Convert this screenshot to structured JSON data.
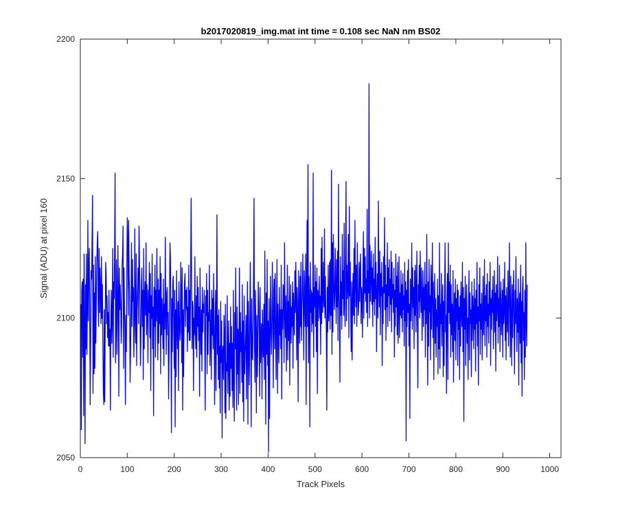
{
  "figure": {
    "background_color": "#ffffff"
  },
  "chart_data": {
    "type": "line",
    "title": "b2017020819_img.mat int time = 0.108 sec  NaN nm BS02",
    "xlabel": "Track Pixels",
    "ylabel": "Signal (ADU) at pixel 160",
    "xlim": [
      0,
      1024
    ],
    "ylim": [
      2050,
      2200
    ],
    "xticks": [
      0,
      100,
      200,
      300,
      400,
      500,
      600,
      700,
      800,
      900,
      1000
    ],
    "yticks": [
      2050,
      2100,
      2150,
      2200
    ],
    "grid": false,
    "legend": "none",
    "series": [
      {
        "color": "#0000ff",
        "note_x_start": 1,
        "x_step": 1,
        "y": [
          2105,
          2060,
          2110,
          2113,
          2086,
          2114,
          2065,
          2123,
          2097,
          2055,
          2112,
          2089,
          2123,
          2087,
          2103,
          2135,
          2099,
          2119,
          2125,
          2100,
          2069,
          2094,
          2117,
          2114,
          2129,
          2144,
          2073,
          2119,
          2080,
          2109,
          2082,
          2122,
          2091,
          2104,
          2119,
          2127,
          2131,
          2106,
          2097,
          2125,
          2102,
          2118,
          2110,
          2098,
          2122,
          2100,
          2112,
          2091,
          2074,
          2069,
          2103,
          2070,
          2097,
          2120,
          2115,
          2098,
          2108,
          2093,
          2102,
          2090,
          2110,
          2090,
          2096,
          2067,
          2101,
          2110,
          2091,
          2100,
          2125,
          2086,
          2113,
          2107,
          2124,
          2152,
          2084,
          2100,
          2121,
          2087,
          2099,
          2126,
          2108,
          2072,
          2118,
          2103,
          2112,
          2105,
          2091,
          2097,
          2119,
          2123,
          2133,
          2082,
          2118,
          2104,
          2095,
          2069,
          2101,
          2088,
          2117,
          2136,
          2129,
          2101,
          2135,
          2115,
          2108,
          2077,
          2088,
          2103,
          2127,
          2097,
          2121,
          2106,
          2111,
          2086,
          2095,
          2132,
          2100,
          2091,
          2123,
          2083,
          2103,
          2110,
          2118,
          2098,
          2133,
          2121,
          2105,
          2083,
          2091,
          2112,
          2118,
          2097,
          2110,
          2078,
          2125,
          2089,
          2107,
          2113,
          2101,
          2127,
          2094,
          2112,
          2105,
          2084,
          2110,
          2102,
          2120,
          2093,
          2116,
          2074,
          2108,
          2100,
          2123,
          2089,
          2104,
          2065,
          2111,
          2097,
          2119,
          2086,
          2110,
          2099,
          2125,
          2103,
          2085,
          2114,
          2091,
          2110,
          2098,
          2122,
          2080,
          2116,
          2094,
          2107,
          2100,
          2089,
          2114,
          2083,
          2105,
          2096,
          2129,
          2102,
          2087,
          2109,
          2111,
          2094,
          2102,
          2071,
          2086,
          2108,
          2127,
          2121,
          2097,
          2059,
          2107,
          2088,
          2113,
          2115,
          2096,
          2082,
          2110,
          2061,
          2103,
          2079,
          2117,
          2096,
          2089,
          2106,
          2074,
          2113,
          2101,
          2092,
          2095,
          2120,
          2109,
          2084,
          2118,
          2067,
          2103,
          2079,
          2100,
          2113,
          2116,
          2097,
          2110,
          2103,
          2111,
          2088,
          2104,
          2095,
          2119,
          2092,
          2110,
          2092,
          2116,
          2143,
          2116,
          2089,
          2106,
          2104,
          2074,
          2100,
          2094,
          2122,
          2095,
          2089,
          2108,
          2086,
          2115,
          2097,
          2111,
          2092,
          2104,
          2072,
          2118,
          2099,
          2087,
          2103,
          2081,
          2111,
          2095,
          2105,
          2102,
          2110,
          2093,
          2067,
          2108,
          2101,
          2116,
          2080,
          2110,
          2087,
          2102,
          2099,
          2119,
          2083,
          2094,
          2103,
          2078,
          2110,
          2094,
          2107,
          2089,
          2116,
          2098,
          2069,
          2092,
          2110,
          2074,
          2099,
          2137,
          2087,
          2101,
          2078,
          2103,
          2075,
          2090,
          2066,
          2106,
          2084,
          2099,
          2057,
          2088,
          2090,
          2078,
          2101,
          2094,
          2066,
          2105,
          2064,
          2084,
          2081,
          2108,
          2073,
          2087,
          2099,
          2067,
          2091,
          2072,
          2104,
          2082,
          2097,
          2074,
          2091,
          2068,
          2110,
          2081,
          2063,
          2102,
          2089,
          2118,
          2086,
          2067,
          2104,
          2080,
          2096,
          2069,
          2093,
          2118,
          2073,
          2102,
          2088,
          2095,
          2077,
          2112,
          2070,
          2099,
          2063,
          2108,
          2080,
          2087,
          2092,
          2101,
          2071,
          2096,
          2113,
          2062,
          2106,
          2089,
          2076,
          2100,
          2120,
          2092,
          2061,
          2107,
          2087,
          2085,
          2097,
          2115,
          2143,
          2091,
          2077,
          2110,
          2095,
          2066,
          2101,
          2079,
          2089,
          2113,
          2107,
          2095,
          2072,
          2111,
          2084,
          2092,
          2098,
          2071,
          2103,
          2091,
          2086,
          2105,
          2078,
          2124,
          2094,
          2062,
          2109,
          2087,
          2121,
          2083,
          2099,
          2052,
          2107,
          2064,
          2092,
          2115,
          2095,
          2087,
          2101,
          2120,
          2096,
          2075,
          2110,
          2114,
          2089,
          2116,
          2096,
          2078,
          2104,
          2121,
          2073,
          2105,
          2095,
          2084,
          2111,
          2094,
          2103,
          2089,
          2119,
          2071,
          2103,
          2096,
          2112,
          2110,
          2084,
          2127,
          2102,
          2093,
          2108,
          2081,
          2099,
          2119,
          2085,
          2106,
          2092,
          2115,
          2076,
          2099,
          2112,
          2091,
          2104,
          2097,
          2113,
          2082,
          2109,
          2101,
          2094,
          2117,
          2102,
          2120,
          2106,
          2085,
          2111,
          2100,
          2070,
          2117,
          2103,
          2091,
          2115,
          2097,
          2120,
          2092,
          2104,
          2110,
          2123,
          2101,
          2085,
          2117,
          2108,
          2097,
          2123,
          2069,
          2110,
          2135,
          2097,
          2155,
          2084,
          2115,
          2106,
          2061,
          2120,
          2102,
          2110,
          2095,
          2109,
          2098,
          2152,
          2086,
          2111,
          2104,
          2119,
          2097,
          2113,
          2088,
          2118,
          2073,
          2110,
          2099,
          2107,
          2115,
          2100,
          2108,
          2087,
          2125,
          2098,
          2129,
          2102,
          2107,
          2120,
          2104,
          2132,
          2100,
          2115,
          2102,
          2096,
          2067,
          2111,
          2095,
          2119,
          2099,
          2103,
          2120,
          2096,
          2121,
          2101,
          2153,
          2087,
          2127,
          2095,
          2130,
          2114,
          2103,
          2108,
          2125,
          2111,
          2098,
          2121,
          2104,
          2124,
          2092,
          2148,
          2109,
          2103,
          2077,
          2122,
          2101,
          2113,
          2096,
          2130,
          2107,
          2117,
          2101,
          2134,
          2106,
          2097,
          2123,
          2149,
          2099,
          2119,
          2107,
          2112,
          2130,
          2093,
          2140,
          2108,
          2120,
          2101,
          2088,
          2113,
          2085,
          2107,
          2116,
          2101,
          2125,
          2098,
          2135,
          2113,
          2104,
          2119,
          2097,
          2127,
          2112,
          2101,
          2104,
          2120,
          2106,
          2117,
          2123,
          2098,
          2111,
          2108,
          2093,
          2116,
          2131,
          2100,
          2125,
          2109,
          2122,
          2106,
          2114,
          2102,
          2139,
          2097,
          2117,
          2109,
          2184,
          2100,
          2126,
          2106,
          2115,
          2124,
          2105,
          2118,
          2097,
          2123,
          2106,
          2114,
          2101,
          2129,
          2107,
          2120,
          2088,
          2109,
          2116,
          2100,
          2142,
          2112,
          2104,
          2124,
          2094,
          2116,
          2108,
          2120,
          2083,
          2111,
          2098,
          2122,
          2109,
          2136,
          2103,
          2119,
          2092,
          2112,
          2104,
          2127,
          2097,
          2118,
          2108,
          2121,
          2099,
          2114,
          2105,
          2124,
          2095,
          2120,
          2107,
          2112,
          2102,
          2118,
          2086,
          2110,
          2097,
          2123,
          2104,
          2115,
          2094,
          2120,
          2091,
          2106,
          2122,
          2093,
          2109,
          2101,
          2117,
          2100,
          2112,
          2095,
          2116,
          2103,
          2108,
          2090,
          2120,
          2099,
          2113,
          2056,
          2110,
          2097,
          2117,
          2102,
          2121,
          2090,
          2105,
          2064,
          2114,
          2099,
          2109,
          2127,
          2096,
          2118,
          2104,
          2111,
          2089,
          2117,
          2101,
          2119,
          2095,
          2108,
          2124,
          2099,
          2075,
          2112,
          2106,
          2119,
          2100,
          2124,
          2110,
          2102,
          2118,
          2092,
          2105,
          2117,
          2097,
          2111,
          2103,
          2120,
          2086,
          2112,
          2098,
          2130,
          2105,
          2076,
          2113,
          2090,
          2121,
          2102,
          2108,
          2085,
          2119,
          2096,
          2110,
          2127,
          2093,
          2113,
          2078,
          2104,
          2116,
          2091,
          2107,
          2086,
          2103,
          2097,
          2114,
          2080,
          2108,
          2089,
          2127,
          2082,
          2105,
          2098,
          2116,
          2090,
          2102,
          2112,
          2079,
          2106,
          2083,
          2109,
          2127,
          2095,
          2101,
          2073,
          2108,
          2116,
          2078,
          2127,
          2102,
          2113,
          2098,
          2119,
          2086,
          2112,
          2094,
          2105,
          2088,
          2117,
          2077,
          2101,
          2109,
          2092,
          2114,
          2085,
          2107,
          2099,
          2112,
          2083,
          2110,
          2096,
          2104,
          2078,
          2108,
          2090,
          2113,
          2102,
          2097,
          2120,
          2088,
          2111,
          2063,
          2107,
          2096,
          2115,
          2083,
          2104,
          2112,
          2091,
          2100,
          2078,
          2106,
          2117,
          2085,
          2109,
          2098,
          2103,
          2079,
          2113,
          2092,
          2108,
          2102,
          2089,
          2114,
          2096,
          2107,
          2081,
          2110,
          2098,
          2120,
          2090,
          2104,
          2076,
          2112,
          2099,
          2118,
          2087,
          2105,
          2096,
          2109,
          2085,
          2101,
          2115,
          2094,
          2102,
          2121,
          2090,
          2108,
          2099,
          2112,
          2086,
          2116,
          2097,
          2105,
          2091,
          2113,
          2101,
          2120,
          2083,
          2107,
          2096,
          2110,
          2102,
          2115,
          2089,
          2103,
          2117,
          2095,
          2109,
          2081,
          2112,
          2099,
          2104,
          2122,
          2091,
          2107,
          2097,
          2119,
          2088,
          2105,
          2113,
          2094,
          2101,
          2110,
          2086,
          2114,
          2098,
          2103,
          2120,
          2092,
          2108,
          2085,
          2111,
          2100,
          2095,
          2117,
          2090,
          2106,
          2127,
          2102,
          2086,
          2115,
          2099,
          2083,
          2112,
          2093,
          2109,
          2117,
          2096,
          2080,
          2110,
          2098,
          2122,
          2101,
          2088,
          2107,
          2095,
          2114,
          2076,
          2104,
          2109,
          2091,
          2119,
          2084,
          2106,
          2072,
          2111,
          2115,
          2092,
          2102,
          2078,
          2110,
          2086,
          2127,
          2099,
          2090,
          2112
        ]
      }
    ]
  }
}
